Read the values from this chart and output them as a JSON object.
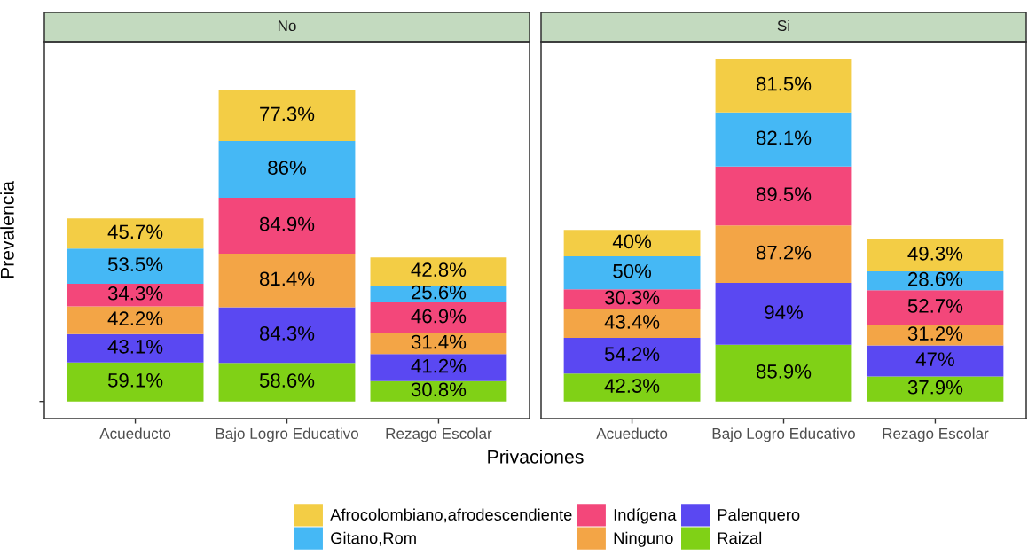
{
  "chart_data": [
    {
      "type": "bar",
      "title": "No",
      "xlabel": "Privaciones",
      "ylabel": "Prevalencia",
      "categories": [
        "Acueducto",
        "Bajo Logro Educativo",
        "Rezago Escolar"
      ],
      "stacked": true,
      "ylim": [
        -26,
        546
      ],
      "yticks": [
        {
          "value": 0,
          "label": null
        }
      ],
      "tick_labels": "x",
      "grid": false,
      "legend": "bottom",
      "series": [
        {
          "name": "Raizal",
          "color": "#80d116",
          "values": [
            59.1,
            58.6,
            30.8
          ],
          "value_labels": [
            "59.1%",
            "58.6%",
            "30.8%"
          ]
        },
        {
          "name": "Palenquero",
          "color": "#5a48f2",
          "values": [
            43.1,
            84.3,
            41.2
          ],
          "value_labels": [
            "43.1%",
            "84.3%",
            "41.2%"
          ]
        },
        {
          "name": "Ninguno",
          "color": "#f3a546",
          "values": [
            42.2,
            81.4,
            31.4
          ],
          "value_labels": [
            "42.2%",
            "81.4%",
            "31.4%"
          ]
        },
        {
          "name": "Indígena",
          "color": "#f3477a",
          "values": [
            34.3,
            84.9,
            46.9
          ],
          "value_labels": [
            "34.3%",
            "84.9%",
            "46.9%"
          ]
        },
        {
          "name": "Gitano,Rom",
          "color": "#45b8f5",
          "values": [
            53.5,
            86,
            25.6
          ],
          "value_labels": [
            "53.5%",
            "86%",
            "25.6%"
          ]
        },
        {
          "name": "Afrocolombiano,afrodescendiente",
          "color": "#f3cd45",
          "values": [
            45.7,
            77.3,
            42.8
          ],
          "value_labels": [
            "45.7%",
            "77.3%",
            "42.8%"
          ]
        }
      ]
    },
    {
      "type": "bar",
      "title": "Si",
      "categories": [
        "Acueducto",
        "Bajo Logro Educativo",
        "Rezago Escolar"
      ],
      "stacked": true,
      "ylim": [
        -26,
        546
      ],
      "tick_labels": "x",
      "grid": false,
      "series": [
        {
          "name": "Raizal",
          "color": "#80d116",
          "values": [
            42.3,
            85.9,
            37.9
          ],
          "value_labels": [
            "42.3%",
            "85.9%",
            "37.9%"
          ]
        },
        {
          "name": "Palenquero",
          "color": "#5a48f2",
          "values": [
            54.2,
            94,
            47
          ],
          "value_labels": [
            "54.2%",
            "94%",
            "47%"
          ]
        },
        {
          "name": "Ninguno",
          "color": "#f3a546",
          "values": [
            43.4,
            87.2,
            31.2
          ],
          "value_labels": [
            "43.4%",
            "87.2%",
            "31.2%"
          ]
        },
        {
          "name": "Indígena",
          "color": "#f3477a",
          "values": [
            30.3,
            89.5,
            52.7
          ],
          "value_labels": [
            "30.3%",
            "89.5%",
            "52.7%"
          ]
        },
        {
          "name": "Gitano,Rom",
          "color": "#45b8f5",
          "values": [
            50,
            82.1,
            28.6
          ],
          "value_labels": [
            "50%",
            "82.1%",
            "28.6%"
          ]
        },
        {
          "name": "Afrocolombiano,afrodescendiente",
          "color": "#f3cd45",
          "values": [
            40,
            81.5,
            49.3
          ],
          "value_labels": [
            "40%",
            "81.5%",
            "49.3%"
          ]
        }
      ]
    }
  ]
}
